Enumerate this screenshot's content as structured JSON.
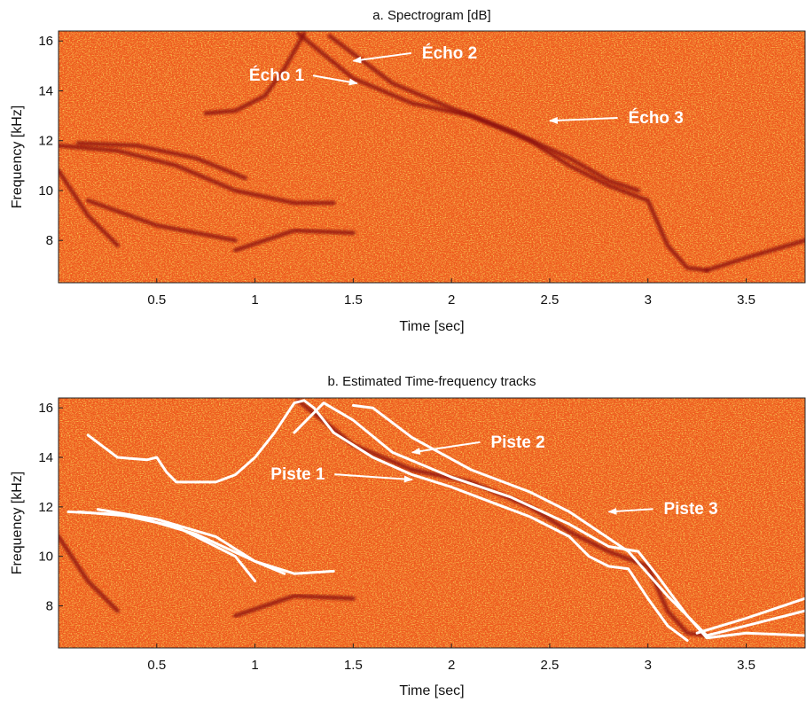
{
  "chart_data": [
    {
      "type": "heatmap",
      "title": "a. Spectrogram [dB]",
      "xlabel": "Time [sec]",
      "ylabel": "Frequency [kHz]",
      "xlim": [
        0,
        3.8
      ],
      "ylim": [
        6.3,
        16.4
      ],
      "xticks": [
        0.5,
        1,
        1.5,
        2,
        2.5,
        3,
        3.5
      ],
      "xtick_labels": [
        "0.5",
        "1",
        "1.5",
        "2",
        "2.5",
        "3",
        "3.5"
      ],
      "yticks": [
        8,
        10,
        12,
        14,
        16
      ],
      "ytick_labels": [
        "8",
        "10",
        "12",
        "14",
        "16"
      ],
      "colors": {
        "background": "#ee5a1e",
        "noise_light": "#f6a31c",
        "noise_yellow": "#f4d23a",
        "ridge": "#8a0c08"
      },
      "ridges": [
        {
          "x": [
            0.75,
            0.9,
            1.05,
            1.15,
            1.25
          ],
          "y": [
            13.1,
            13.2,
            13.8,
            14.9,
            16.3
          ]
        },
        {
          "x": [
            1.22,
            1.5,
            1.8,
            2.1,
            2.4,
            2.6,
            2.8,
            3.0,
            3.1,
            3.2,
            3.3
          ],
          "y": [
            16.3,
            14.5,
            13.5,
            13.0,
            12.0,
            11.0,
            10.2,
            9.6,
            7.8,
            6.9,
            6.8
          ]
        },
        {
          "x": [
            1.38,
            1.7,
            2.0,
            2.3,
            2.6,
            2.8,
            2.95
          ],
          "y": [
            16.2,
            14.3,
            13.3,
            12.4,
            11.3,
            10.4,
            10.0
          ]
        },
        {
          "x": [
            3.3,
            3.5,
            3.8
          ],
          "y": [
            6.8,
            7.3,
            8.0
          ]
        },
        {
          "x": [
            0.0,
            0.3,
            0.6,
            0.9,
            1.2,
            1.4
          ],
          "y": [
            11.8,
            11.6,
            11.0,
            10.0,
            9.5,
            9.5
          ]
        },
        {
          "x": [
            0.1,
            0.4,
            0.7,
            0.95
          ],
          "y": [
            11.9,
            11.8,
            11.3,
            10.5
          ]
        },
        {
          "x": [
            0.0,
            0.15,
            0.3
          ],
          "y": [
            10.8,
            9.0,
            7.8
          ]
        },
        {
          "x": [
            0.9,
            1.2,
            1.5
          ],
          "y": [
            7.6,
            8.4,
            8.3
          ]
        },
        {
          "x": [
            0.15,
            0.5,
            0.9
          ],
          "y": [
            9.6,
            8.6,
            8.0
          ]
        }
      ],
      "annotations": [
        {
          "text": "Écho 1",
          "x_text": 0.97,
          "y_text": 14.4,
          "x_arrow": 1.52,
          "y_arrow": 14.3
        },
        {
          "text": "Écho 2",
          "x_text": 1.85,
          "y_text": 15.3,
          "x_arrow": 1.5,
          "y_arrow": 15.2
        },
        {
          "text": "Écho 3",
          "x_text": 2.9,
          "y_text": 12.7,
          "x_arrow": 2.5,
          "y_arrow": 12.8
        }
      ]
    },
    {
      "type": "heatmap",
      "title": "b. Estimated Time-frequency tracks",
      "xlabel": "Time [sec]",
      "ylabel": "Frequency [kHz]",
      "xlim": [
        0,
        3.8
      ],
      "ylim": [
        6.3,
        16.4
      ],
      "xticks": [
        0.5,
        1,
        1.5,
        2,
        2.5,
        3,
        3.5
      ],
      "xtick_labels": [
        "0.5",
        "1",
        "1.5",
        "2",
        "2.5",
        "3",
        "3.5"
      ],
      "yticks": [
        8,
        10,
        12,
        14,
        16
      ],
      "ytick_labels": [
        "8",
        "10",
        "12",
        "14",
        "16"
      ],
      "colors": {
        "background": "#ee5a1e",
        "noise_light": "#f6a31c",
        "noise_yellow": "#f4d23a",
        "ridge": "#8a0c08",
        "track": "#ffffff"
      },
      "ridges": [
        {
          "x": [
            1.22,
            1.5,
            1.8,
            2.1,
            2.4,
            2.6,
            2.8,
            3.0,
            3.1,
            3.2,
            3.3
          ],
          "y": [
            16.3,
            14.5,
            13.5,
            13.0,
            12.0,
            11.0,
            10.2,
            9.6,
            7.8,
            6.9,
            6.8
          ]
        },
        {
          "x": [
            0.0,
            0.15,
            0.3
          ],
          "y": [
            10.8,
            9.0,
            7.8
          ]
        },
        {
          "x": [
            0.9,
            1.2,
            1.5
          ],
          "y": [
            7.6,
            8.4,
            8.3
          ]
        }
      ],
      "tracks": [
        {
          "x": [
            0.15,
            0.3,
            0.45,
            0.5,
            0.55,
            0.6,
            0.75,
            0.8,
            0.9,
            1.0,
            1.1,
            1.2,
            1.25,
            1.3,
            1.4,
            1.6,
            1.8,
            2.0,
            2.2,
            2.4,
            2.6,
            2.7,
            2.8,
            2.9,
            3.0,
            3.1,
            3.2
          ],
          "y": [
            14.9,
            14.0,
            13.9,
            14.0,
            13.4,
            13.0,
            13.0,
            13.0,
            13.3,
            14.0,
            15.0,
            16.2,
            16.3,
            16.0,
            15.0,
            14.0,
            13.3,
            12.8,
            12.2,
            11.6,
            10.8,
            10.0,
            9.6,
            9.5,
            8.3,
            7.2,
            6.6
          ]
        },
        {
          "x": [
            1.2,
            1.35,
            1.5,
            1.7,
            2.0,
            2.3,
            2.6,
            2.8,
            2.95,
            3.05,
            3.2,
            3.3,
            3.5,
            3.8
          ],
          "y": [
            15.0,
            16.2,
            15.5,
            14.2,
            13.2,
            12.4,
            11.3,
            10.4,
            10.2,
            9.2,
            7.6,
            6.7,
            6.9,
            6.8
          ]
        },
        {
          "x": [
            1.5,
            1.6,
            1.8,
            2.1,
            2.4,
            2.6,
            2.75,
            2.9,
            3.1,
            3.3,
            3.5,
            3.8
          ],
          "y": [
            16.1,
            16.0,
            14.8,
            13.5,
            12.6,
            11.8,
            11.0,
            10.2,
            8.4,
            6.8,
            7.2,
            7.8
          ]
        },
        {
          "x": [
            3.25,
            3.5,
            3.8
          ],
          "y": [
            6.9,
            7.5,
            8.3
          ]
        },
        {
          "x": [
            0.05,
            0.3,
            0.6,
            0.9,
            1.0
          ],
          "y": [
            11.8,
            11.7,
            11.2,
            10.0,
            9.0
          ]
        },
        {
          "x": [
            0.1,
            0.4,
            0.7,
            1.0,
            1.15
          ],
          "y": [
            11.8,
            11.6,
            10.9,
            9.8,
            9.3
          ]
        },
        {
          "x": [
            0.2,
            0.5,
            0.8,
            1.0,
            1.2,
            1.4
          ],
          "y": [
            11.9,
            11.5,
            10.8,
            9.8,
            9.3,
            9.4
          ]
        }
      ],
      "annotations": [
        {
          "text": "Piste 1",
          "x_text": 1.08,
          "y_text": 13.1,
          "x_arrow": 1.8,
          "y_arrow": 13.1
        },
        {
          "text": "Piste 2",
          "x_text": 2.2,
          "y_text": 14.4,
          "x_arrow": 1.8,
          "y_arrow": 14.2
        },
        {
          "text": "Piste 3",
          "x_text": 3.08,
          "y_text": 11.7,
          "x_arrow": 2.8,
          "y_arrow": 11.8
        }
      ]
    }
  ]
}
